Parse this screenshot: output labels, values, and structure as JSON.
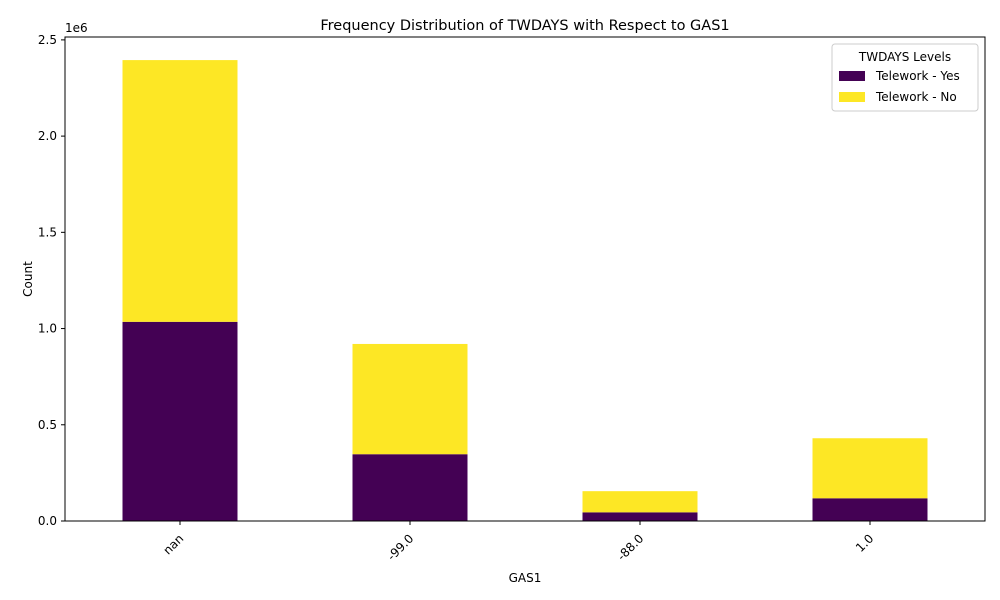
{
  "chart_data": {
    "type": "bar",
    "stacked": true,
    "title": "Frequency Distribution of TWDAYS with Respect to GAS1",
    "xlabel": "GAS1",
    "ylabel": "Count",
    "y_offset_label": "1e6",
    "categories": [
      "nan",
      "-99.0",
      "-88.0",
      "1.0"
    ],
    "series": [
      {
        "name": "Telework - Yes",
        "color": "#440154",
        "values": [
          1035000,
          347000,
          45000,
          118000
        ]
      },
      {
        "name": "Telework - No",
        "color": "#fde725",
        "values": [
          1360000,
          573000,
          110000,
          312000
        ]
      }
    ],
    "ylim": [
      0,
      2515000
    ],
    "y_ticks": [
      0,
      500000,
      1000000,
      1500000,
      2000000,
      2500000
    ],
    "y_tick_labels": [
      "0.0",
      "0.5",
      "1.0",
      "1.5",
      "2.0",
      "2.5"
    ],
    "x_tick_rotation": 45,
    "legend": {
      "title": "TWDAYS Levels",
      "placement": "top-right"
    },
    "grid": false
  }
}
